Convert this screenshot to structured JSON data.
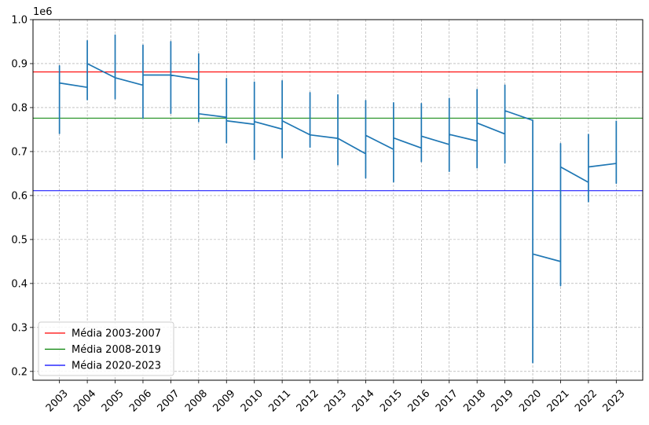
{
  "chart_data": {
    "type": "line",
    "title": "",
    "xlabel": "",
    "ylabel": "",
    "y_offset_label": "1e6",
    "xlim": [
      2002.05,
      2023.95
    ],
    "ylim": [
      180000,
      1000000
    ],
    "grid": true,
    "legend_placement": "lower-left",
    "yticks": [
      {
        "value": 200000,
        "label": "0.2"
      },
      {
        "value": 300000,
        "label": "0.3"
      },
      {
        "value": 400000,
        "label": "0.4"
      },
      {
        "value": 500000,
        "label": "0.5"
      },
      {
        "value": 600000,
        "label": "0.6"
      },
      {
        "value": 700000,
        "label": "0.7"
      },
      {
        "value": 800000,
        "label": "0.8"
      },
      {
        "value": 900000,
        "label": "0.9"
      },
      {
        "value": 1000000,
        "label": "1.0"
      }
    ],
    "xticks": [
      {
        "value": 2003,
        "label": "2003"
      },
      {
        "value": 2004,
        "label": "2004"
      },
      {
        "value": 2005,
        "label": "2005"
      },
      {
        "value": 2006,
        "label": "2006"
      },
      {
        "value": 2007,
        "label": "2007"
      },
      {
        "value": 2008,
        "label": "2008"
      },
      {
        "value": 2009,
        "label": "2009"
      },
      {
        "value": 2010,
        "label": "2010"
      },
      {
        "value": 2011,
        "label": "2011"
      },
      {
        "value": 2012,
        "label": "2012"
      },
      {
        "value": 2013,
        "label": "2013"
      },
      {
        "value": 2014,
        "label": "2014"
      },
      {
        "value": 2015,
        "label": "2015"
      },
      {
        "value": 2016,
        "label": "2016"
      },
      {
        "value": 2017,
        "label": "2017"
      },
      {
        "value": 2018,
        "label": "2018"
      },
      {
        "value": 2019,
        "label": "2019"
      },
      {
        "value": 2020,
        "label": "2020"
      },
      {
        "value": 2021,
        "label": "2021"
      },
      {
        "value": 2022,
        "label": "2022"
      },
      {
        "value": 2023,
        "label": "2023"
      }
    ],
    "series": [
      {
        "color": "#1f77b4",
        "x": [
          2003,
          2003,
          2003,
          2004,
          2004,
          2004,
          2004,
          2005,
          2005,
          2005,
          2005,
          2006,
          2006,
          2006,
          2006,
          2007,
          2007,
          2007,
          2007,
          2008,
          2008,
          2008,
          2008,
          2009,
          2009,
          2009,
          2009,
          2010,
          2010,
          2010,
          2010,
          2011,
          2011,
          2011,
          2011,
          2012,
          2012,
          2012,
          2012,
          2013,
          2013,
          2013,
          2013,
          2014,
          2014,
          2014,
          2014,
          2015,
          2015,
          2015,
          2015,
          2016,
          2016,
          2016,
          2016,
          2017,
          2017,
          2017,
          2017,
          2018,
          2018,
          2018,
          2018,
          2019,
          2019,
          2019,
          2019,
          2020,
          2020,
          2020,
          2020,
          2021,
          2021,
          2021,
          2021,
          2022,
          2022,
          2022,
          2022,
          2023,
          2023,
          2023
        ],
        "y": [
          740000,
          895000,
          856000,
          846000,
          818000,
          952000,
          900000,
          868000,
          820000,
          965000,
          868000,
          851000,
          776000,
          942000,
          874000,
          874000,
          787000,
          950000,
          874000,
          864000,
          768000,
          922000,
          786000,
          778000,
          720000,
          866000,
          770000,
          762000,
          682000,
          858000,
          768000,
          751000,
          686000,
          861000,
          770000,
          738000,
          710000,
          834000,
          738000,
          730000,
          670000,
          829000,
          730000,
          695000,
          640000,
          816000,
          737000,
          705000,
          631000,
          811000,
          731000,
          708000,
          677000,
          809000,
          735000,
          716000,
          655000,
          821000,
          739000,
          724000,
          663000,
          841000,
          765000,
          740000,
          674000,
          851000,
          793000,
          771000,
          220000,
          771000,
          467000,
          450000,
          395000,
          718000,
          665000,
          630000,
          586000,
          739000,
          665000,
          673000,
          628000,
          770000
        ]
      }
    ],
    "hlines": [
      {
        "name": "Média 2003-2007",
        "value": 881000,
        "color": "#ff0000"
      },
      {
        "name": "Média 2008-2019",
        "value": 776000,
        "color": "#008000"
      },
      {
        "name": "Média 2020-2023",
        "value": 611000,
        "color": "#0000ff"
      }
    ]
  }
}
